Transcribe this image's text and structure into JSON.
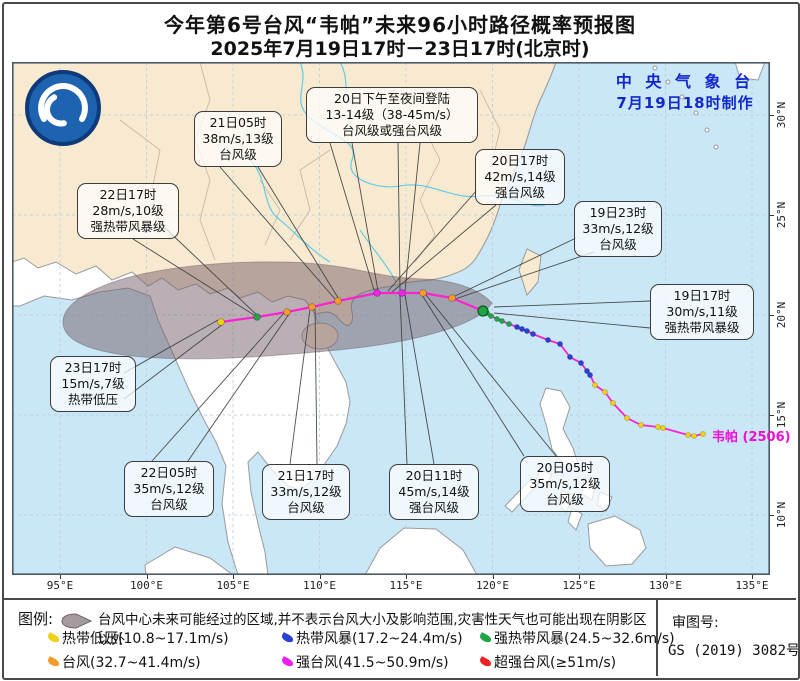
{
  "title": {
    "line1": "今年第6号台风“韦帕”未来96小时路径概率预报图",
    "line2": "2025年7月19日17时－23日17时(北京时)"
  },
  "credit": {
    "agency": "中 央 气 象 台",
    "made": "7月19日18时制作"
  },
  "map": {
    "storm_name": "韦帕 (2506)",
    "lon_ticks": [
      "95°E",
      "100°E",
      "105°E",
      "110°E",
      "115°E",
      "120°E",
      "125°E",
      "130°E",
      "135°E"
    ],
    "lat_ticks": [
      "30°N",
      "25°N",
      "20°N",
      "15°N",
      "10°N"
    ],
    "labels": [
      {
        "lines": [
          "19日17时",
          "30m/s,11级",
          "强热带风暴级"
        ]
      },
      {
        "lines": [
          "19日23时",
          "33m/s,12级",
          "台风级"
        ]
      },
      {
        "lines": [
          "20日05时",
          "35m/s,12级",
          "台风级"
        ]
      },
      {
        "lines": [
          "20日11时",
          "45m/s,14级",
          "强台风级"
        ]
      },
      {
        "lines": [
          "20日17时",
          "42m/s,14级",
          "强台风级"
        ]
      },
      {
        "lines": [
          "21日05时",
          "38m/s,13级",
          "台风级"
        ]
      },
      {
        "lines": [
          "21日17时",
          "33m/s,12级",
          "台风级"
        ]
      },
      {
        "lines": [
          "22日05时",
          "35m/s,12级",
          "台风级"
        ]
      },
      {
        "lines": [
          "22日17时",
          "28m/s,10级",
          "强热带风暴级"
        ]
      },
      {
        "lines": [
          "23日17时",
          "15m/s,7级",
          "热带低压"
        ]
      },
      {
        "lines": [
          "20日下午至夜间登陆",
          "13-14级（38-45m/s）",
          "台风级或强台风级"
        ]
      }
    ],
    "tracks": {
      "history": [
        [
          703,
          434,
          "td"
        ],
        [
          694,
          436,
          "td"
        ],
        [
          688,
          435,
          "td"
        ],
        [
          663,
          428,
          "td"
        ],
        [
          658,
          427,
          "td"
        ],
        [
          641,
          425,
          "td"
        ],
        [
          627,
          418,
          "td"
        ],
        [
          613,
          403,
          "td"
        ],
        [
          605,
          392,
          "td"
        ],
        [
          595,
          385,
          "td"
        ],
        [
          590,
          375,
          "ts"
        ],
        [
          587,
          371,
          "ts"
        ],
        [
          581,
          363,
          "ts"
        ],
        [
          570,
          357,
          "ts"
        ],
        [
          560,
          344,
          "ts"
        ],
        [
          548,
          340,
          "ts"
        ],
        [
          533,
          334,
          "ts"
        ],
        [
          527,
          331,
          "ts"
        ],
        [
          522,
          329,
          "ts"
        ],
        [
          517,
          327,
          "ts"
        ],
        [
          509,
          324,
          "sts"
        ],
        [
          502,
          321,
          "sts"
        ],
        [
          497,
          319,
          "sts"
        ],
        [
          491,
          316,
          "sts"
        ],
        [
          487,
          313,
          "sts"
        ]
      ],
      "current": [
        483,
        311,
        "sts"
      ],
      "forecast": [
        [
          452,
          298,
          "ty"
        ],
        [
          423,
          293,
          "ty"
        ],
        [
          402,
          293,
          "sty"
        ],
        [
          377,
          293,
          "sty"
        ],
        [
          338,
          301,
          "ty"
        ],
        [
          312,
          307,
          "ty"
        ],
        [
          287,
          312,
          "ty"
        ],
        [
          257,
          317,
          "sts"
        ],
        [
          221,
          322,
          "td"
        ]
      ]
    }
  },
  "colors": {
    "td": "#f2d014",
    "ts": "#2a3fd4",
    "sts": "#1fa446",
    "ty": "#f79b2a",
    "sty": "#ee22ee",
    "superty": "#ee2222",
    "track": "#fb22cf",
    "cone_fill": "rgba(118,96,105,0.50)",
    "sea": "#c9e7f6",
    "china_land": "#f8ead0",
    "other_land": "#ffffff"
  },
  "legend": {
    "title": "图例:",
    "cone_text": "台风中心未来可能经过的区域,并不表示台风大小及影响范围,灾害性天气也可能出现在阴影区以外",
    "items": [
      {
        "label": "热带低压(10.8~17.1m/s)",
        "color_key": "td"
      },
      {
        "label": "热带风暴(17.2~24.4m/s)",
        "color_key": "ts"
      },
      {
        "label": "强热带风暴(24.5~32.6m/s)",
        "color_key": "sts"
      },
      {
        "label": "台风(32.7~41.4m/s)",
        "color_key": "ty"
      },
      {
        "label": "强台风(41.5~50.9m/s)",
        "color_key": "sty"
      },
      {
        "label": "超强台风(≥51m/s)",
        "color_key": "superty"
      }
    ],
    "review_label": "审图号:",
    "review_no": "GS (2019) 3082号"
  }
}
